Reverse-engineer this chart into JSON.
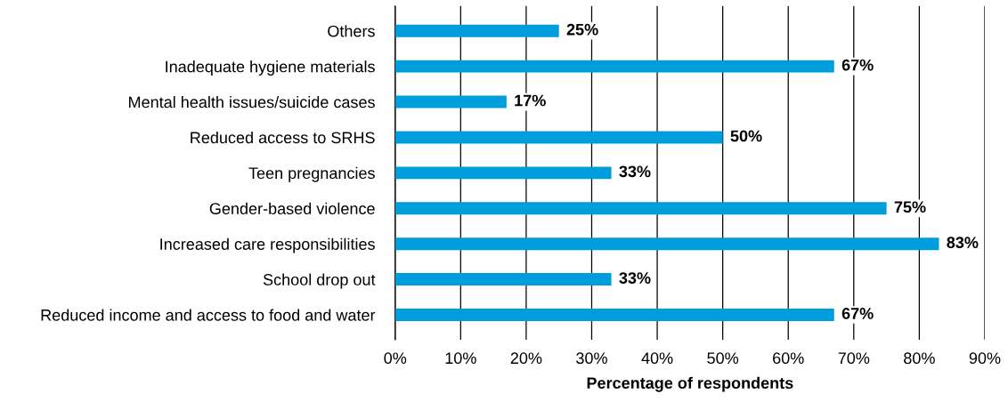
{
  "chart_data": {
    "type": "bar",
    "orientation": "horizontal",
    "xlabel": "Percentage of respondents",
    "categories": [
      "Others",
      "Inadequate hygiene materials",
      "Mental health issues/suicide cases",
      "Reduced access to SRHS",
      "Teen pregnancies",
      "Gender-based violence",
      "Increased care responsibilities",
      "School drop out",
      "Reduced income and access to food and water"
    ],
    "values": [
      25,
      67,
      17,
      50,
      33,
      75,
      83,
      33,
      67
    ],
    "value_labels": [
      "25%",
      "67%",
      "17%",
      "50%",
      "33%",
      "75%",
      "83%",
      "33%",
      "67%"
    ],
    "color": "#009ddc",
    "xlim": [
      0,
      90
    ],
    "xticks": [
      {
        "value": 0,
        "label": "0%"
      },
      {
        "value": 10,
        "label": "10%"
      },
      {
        "value": 20,
        "label": "20%"
      },
      {
        "value": 30,
        "label": "30%"
      },
      {
        "value": 40,
        "label": "40%"
      },
      {
        "value": 50,
        "label": "50%"
      },
      {
        "value": 60,
        "label": "60%"
      },
      {
        "value": 70,
        "label": "70%"
      },
      {
        "value": 80,
        "label": "80%"
      },
      {
        "value": 90,
        "label": "90%"
      }
    ],
    "grid": "x"
  }
}
